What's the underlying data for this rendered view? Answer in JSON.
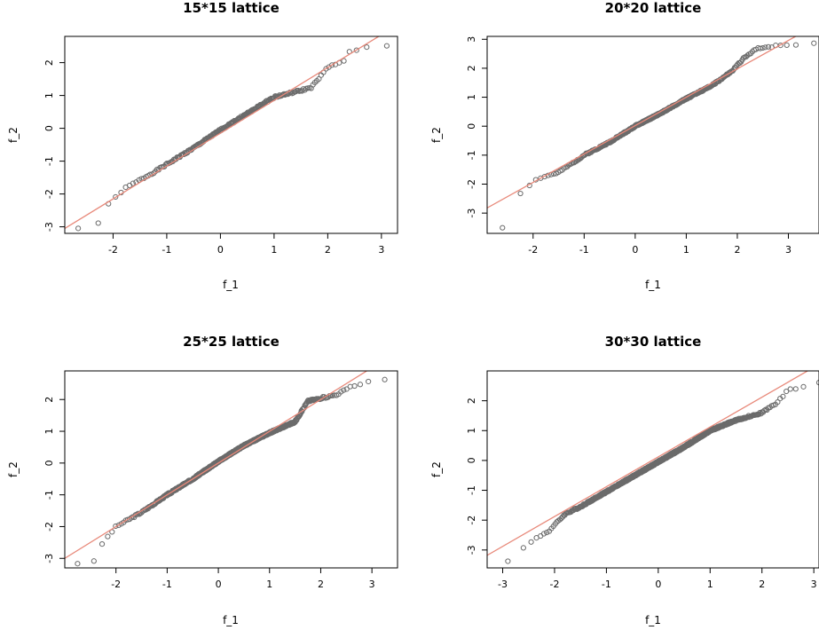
{
  "chart_data": [
    {
      "type": "scatter",
      "title": "15*15 lattice",
      "xlabel": "f_1",
      "ylabel": "f_2",
      "xlim": [
        -2.9,
        3.3
      ],
      "ylim": [
        -3.2,
        2.8
      ],
      "xticks": [
        -2,
        -1,
        0,
        1,
        2,
        3
      ],
      "yticks": [
        -3,
        -2,
        -1,
        0,
        1,
        2
      ],
      "refline": {
        "slope": 1.0,
        "intercept": -0.15,
        "color": "#e8897a"
      },
      "points": {
        "x_min": -2.65,
        "x_max": 3.1,
        "n": 225,
        "seed": 1,
        "bend": [
          [
            -2.65,
            -3.05
          ],
          [
            -2.3,
            -2.95
          ],
          [
            -2.1,
            -2.35
          ],
          [
            -1.8,
            -1.85
          ],
          [
            -1.2,
            -1.3
          ],
          [
            -0.5,
            -0.6
          ],
          [
            0.0,
            -0.05
          ],
          [
            0.5,
            0.45
          ],
          [
            1.0,
            0.95
          ],
          [
            1.5,
            1.15
          ],
          [
            1.7,
            1.25
          ],
          [
            2.0,
            1.85
          ],
          [
            2.3,
            2.05
          ],
          [
            2.4,
            2.35
          ],
          [
            2.75,
            2.45
          ],
          [
            3.1,
            2.5
          ]
        ]
      }
    },
    {
      "type": "scatter",
      "title": "20*20 lattice",
      "xlabel": "f_1",
      "ylabel": "f_2",
      "xlim": [
        -2.9,
        3.6
      ],
      "ylim": [
        -3.7,
        3.1
      ],
      "xticks": [
        -2,
        -1,
        0,
        1,
        2,
        3
      ],
      "yticks": [
        -3,
        -2,
        -1,
        0,
        1,
        2,
        3
      ],
      "refline": {
        "slope": 0.98,
        "intercept": 0.02,
        "color": "#e8897a"
      },
      "points": {
        "x_min": -2.6,
        "x_max": 3.5,
        "n": 400,
        "seed": 2,
        "bend": [
          [
            -2.6,
            -3.5
          ],
          [
            -2.55,
            -2.95
          ],
          [
            -2.2,
            -2.2
          ],
          [
            -1.9,
            -1.8
          ],
          [
            -1.5,
            -1.6
          ],
          [
            -1.0,
            -1.0
          ],
          [
            -0.5,
            -0.55
          ],
          [
            0.0,
            0.0
          ],
          [
            0.5,
            0.45
          ],
          [
            1.0,
            0.95
          ],
          [
            1.5,
            1.4
          ],
          [
            1.9,
            1.9
          ],
          [
            2.1,
            2.3
          ],
          [
            2.4,
            2.7
          ],
          [
            2.9,
            2.8
          ],
          [
            3.5,
            2.85
          ]
        ]
      }
    },
    {
      "type": "scatter",
      "title": "25*25 lattice",
      "xlabel": "f_1",
      "ylabel": "f_2",
      "xlim": [
        -3.0,
        3.5
      ],
      "ylim": [
        -3.3,
        2.9
      ],
      "xticks": [
        -2,
        -1,
        0,
        1,
        2,
        3
      ],
      "yticks": [
        -3,
        -2,
        -1,
        0,
        1,
        2
      ],
      "refline": {
        "slope": 1.0,
        "intercept": 0.0,
        "color": "#e8897a"
      },
      "points": {
        "x_min": -2.75,
        "x_max": 3.25,
        "n": 625,
        "seed": 3,
        "bend": [
          [
            -2.75,
            -3.15
          ],
          [
            -2.35,
            -3.1
          ],
          [
            -2.3,
            -2.6
          ],
          [
            -2.0,
            -2.0
          ],
          [
            -1.5,
            -1.55
          ],
          [
            -1.0,
            -1.0
          ],
          [
            -0.5,
            -0.5
          ],
          [
            0.0,
            0.05
          ],
          [
            0.5,
            0.55
          ],
          [
            1.0,
            0.95
          ],
          [
            1.5,
            1.3
          ],
          [
            1.75,
            1.95
          ],
          [
            2.3,
            2.15
          ],
          [
            2.6,
            2.4
          ],
          [
            3.1,
            2.65
          ],
          [
            3.25,
            2.65
          ]
        ]
      }
    },
    {
      "type": "scatter",
      "title": "30*30 lattice",
      "xlabel": "f_1",
      "ylabel": "f_2",
      "xlim": [
        -3.3,
        3.1
      ],
      "ylim": [
        -3.6,
        3.0
      ],
      "xticks": [
        -3,
        -2,
        -1,
        0,
        1,
        2,
        3
      ],
      "yticks": [
        -3,
        -2,
        -1,
        0,
        1,
        2
      ],
      "refline": {
        "slope": 1.0,
        "intercept": 0.12,
        "color": "#e8897a"
      },
      "points": {
        "x_min": -2.9,
        "x_max": 3.1,
        "n": 900,
        "seed": 4,
        "bend": [
          [
            -2.9,
            -3.35
          ],
          [
            -2.35,
            -2.6
          ],
          [
            -2.1,
            -2.35
          ],
          [
            -1.8,
            -1.8
          ],
          [
            -1.5,
            -1.55
          ],
          [
            -1.0,
            -1.05
          ],
          [
            -0.5,
            -0.55
          ],
          [
            0.0,
            -0.05
          ],
          [
            0.5,
            0.45
          ],
          [
            1.0,
            1.0
          ],
          [
            1.5,
            1.35
          ],
          [
            2.0,
            1.6
          ],
          [
            2.3,
            1.95
          ],
          [
            2.5,
            2.35
          ],
          [
            2.85,
            2.5
          ],
          [
            3.1,
            2.6
          ]
        ]
      }
    }
  ]
}
